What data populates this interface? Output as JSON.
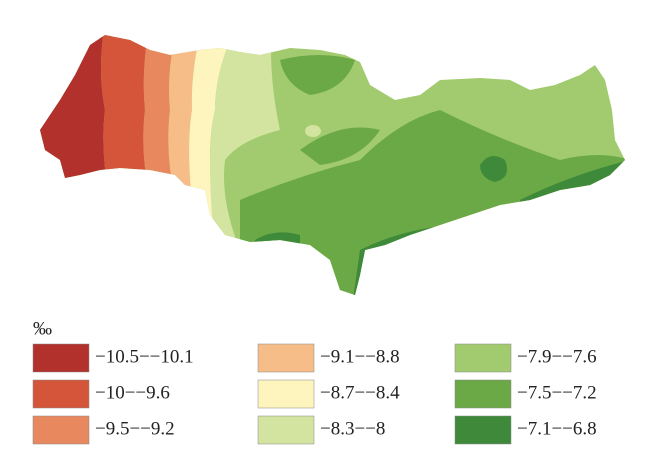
{
  "legend": {
    "title": "‰",
    "items": [
      {
        "label": "−10.5−−10.1",
        "color": "#b3312c"
      },
      {
        "label": "−10−−9.6",
        "color": "#d4553a"
      },
      {
        "label": "−9.5−−9.2",
        "color": "#e8885f"
      },
      {
        "label": "−9.1−−8.8",
        "color": "#f6bd88"
      },
      {
        "label": "−8.7−−8.4",
        "color": "#fdf5bd"
      },
      {
        "label": "−8.3−−8",
        "color": "#d3e4a1"
      },
      {
        "label": "−7.9−−7.6",
        "color": "#a2ca6f"
      },
      {
        "label": "−7.5−−7.2",
        "color": "#6aa945"
      },
      {
        "label": "−7.1−−6.8",
        "color": "#3f8a3a"
      }
    ]
  }
}
